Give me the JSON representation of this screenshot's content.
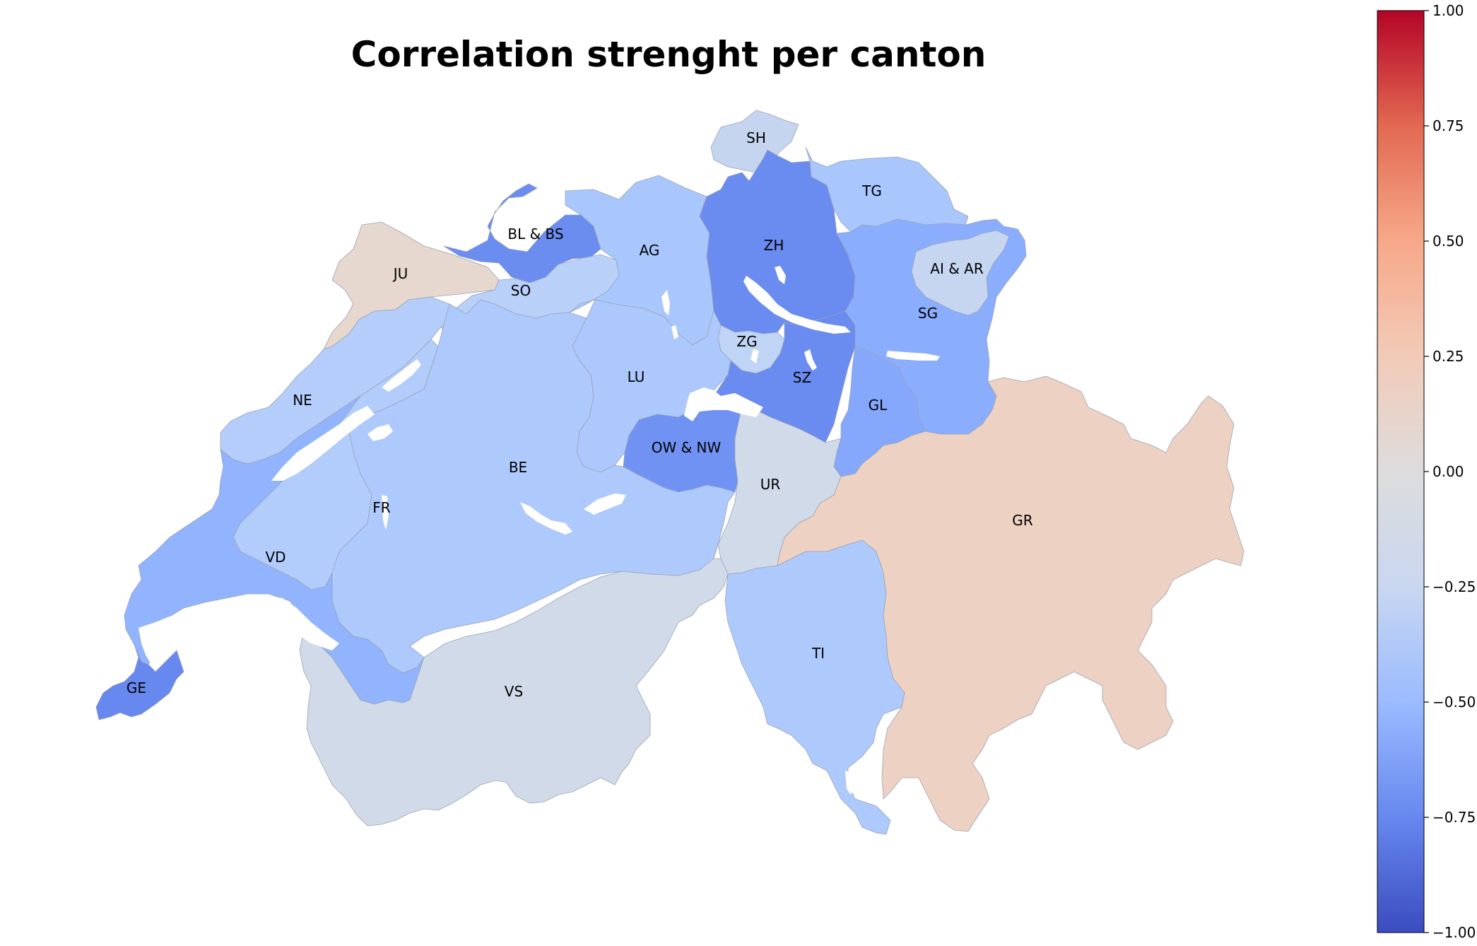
{
  "title": "Correlation strenght per canton",
  "colorbar": {
    "colormap": "coolwarm",
    "min": -1.0,
    "max": 1.0,
    "ticks": [
      "1.00",
      "0.75",
      "0.50",
      "0.25",
      "0.00",
      "−0.25",
      "−0.50",
      "−0.75",
      "−1.00"
    ],
    "tick_values": [
      1.0,
      0.75,
      0.5,
      0.25,
      0.0,
      -0.25,
      -0.5,
      -0.75,
      -1.0
    ],
    "gradient_stops": [
      "#3b4cc0",
      "#6788ee",
      "#9abbff",
      "#c9d7f0",
      "#dddcdc",
      "#f2cbb7",
      "#f7a889",
      "#e26952",
      "#b40426"
    ]
  },
  "cantons": [
    {
      "id": "SH",
      "label": "SH",
      "color": "#c5d5ef"
    },
    {
      "id": "TG",
      "label": "TG",
      "color": "#a9c6fd"
    },
    {
      "id": "ZH",
      "label": "ZH",
      "color": "#6a8bef"
    },
    {
      "id": "BLBS",
      "label": "BL & BS",
      "color": "#6b8df0"
    },
    {
      "id": "AG",
      "label": "AG",
      "color": "#aac7fd"
    },
    {
      "id": "JU",
      "label": "JU",
      "color": "#e6d7cf"
    },
    {
      "id": "SO",
      "label": "SO",
      "color": "#b9d0f9"
    },
    {
      "id": "AIAR",
      "label": "AI & AR",
      "color": "#c6d6f1"
    },
    {
      "id": "SG",
      "label": "SG",
      "color": "#8badfd"
    },
    {
      "id": "ZG",
      "label": "ZG",
      "color": "#c0d4f5"
    },
    {
      "id": "LU",
      "label": "LU",
      "color": "#acc8fc"
    },
    {
      "id": "SZ",
      "label": "SZ",
      "color": "#6a8bef"
    },
    {
      "id": "GL",
      "label": "GL",
      "color": "#85a8fc"
    },
    {
      "id": "NE",
      "label": "NE",
      "color": "#b4cdfa"
    },
    {
      "id": "OWNW",
      "label": "OW & NW",
      "color": "#7093f3"
    },
    {
      "id": "UR",
      "label": "UR",
      "color": "#d1dae9"
    },
    {
      "id": "BE",
      "label": "BE",
      "color": "#aec9fc"
    },
    {
      "id": "FR",
      "label": "FR",
      "color": "#b2ccfb"
    },
    {
      "id": "GR",
      "label": "GR",
      "color": "#edd1c2"
    },
    {
      "id": "VD",
      "label": "VD",
      "color": "#92b4fe"
    },
    {
      "id": "TI",
      "label": "TI",
      "color": "#aec9fc"
    },
    {
      "id": "VS",
      "label": "VS",
      "color": "#d1dae9"
    },
    {
      "id": "GE",
      "label": "GE",
      "color": "#6788ee"
    }
  ]
}
